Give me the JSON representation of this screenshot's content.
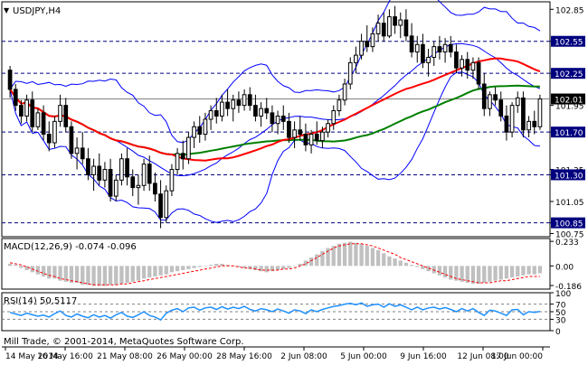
{
  "header": {
    "symbol_timeframe": "USDJPY,H4",
    "macd_label": "MACD(12,26,9) -0.074 -0.096",
    "rsi_label": "RSI(14) 50.5117",
    "copyright": "Mill Trade, © 2001-2014, MetaQuotes Software Corp.",
    "arrow_glyph": "▼"
  },
  "chart_data": [
    {
      "type": "candlestick",
      "title": "USDJPY,H4",
      "ylim": [
        100.72,
        102.92
      ],
      "y_ticks": [
        "102.85",
        "102.55",
        "102.25",
        "101.95",
        "101.70",
        "101.35",
        "101.30",
        "101.05",
        "100.85",
        "100.75"
      ],
      "grid": false,
      "x_ticks": [
        "14 May 2014",
        "16 May 16:00",
        "21 May 08:00",
        "26 May 00:00",
        "28 May 16:00",
        "2 Jun 08:00",
        "5 Jun 00:00",
        "9 Jun 16:00",
        "12 Jun 08:00",
        "17 Jun 00:00"
      ],
      "horizontal_levels": [
        {
          "value": "102.55",
          "label": "102.55"
        },
        {
          "value": "102.25",
          "label": "102.25"
        },
        {
          "value": "101.70",
          "label": "101.70"
        },
        {
          "value": "101.30",
          "label": "101.30"
        },
        {
          "value": "100.85",
          "label": "100.85"
        }
      ],
      "current_price": {
        "value": 102.01,
        "label": "102.01"
      },
      "candles": [
        [
          102.28,
          102.32,
          102.02,
          102.1
        ],
        [
          102.1,
          102.15,
          101.9,
          101.95
        ],
        [
          101.95,
          102.0,
          101.78,
          101.85
        ],
        [
          101.85,
          102.05,
          101.8,
          102.0
        ],
        [
          102.0,
          102.08,
          101.7,
          101.75
        ],
        [
          101.75,
          101.92,
          101.72,
          101.88
        ],
        [
          101.88,
          101.95,
          101.62,
          101.68
        ],
        [
          101.68,
          101.8,
          101.52,
          101.6
        ],
        [
          101.6,
          101.85,
          101.55,
          101.8
        ],
        [
          101.8,
          102.05,
          101.75,
          101.95
        ],
        [
          101.95,
          102.02,
          101.7,
          101.75
        ],
        [
          101.75,
          101.8,
          101.45,
          101.5
        ],
        [
          101.5,
          101.65,
          101.35,
          101.55
        ],
        [
          101.55,
          101.7,
          101.4,
          101.45
        ],
        [
          101.45,
          101.55,
          101.25,
          101.3
        ],
        [
          101.3,
          101.45,
          101.15,
          101.38
        ],
        [
          101.38,
          101.5,
          101.2,
          101.25
        ],
        [
          101.25,
          101.42,
          101.18,
          101.35
        ],
        [
          101.35,
          101.45,
          101.05,
          101.1
        ],
        [
          101.1,
          101.3,
          101.05,
          101.25
        ],
        [
          101.25,
          101.5,
          101.2,
          101.45
        ],
        [
          101.45,
          101.55,
          101.2,
          101.28
        ],
        [
          101.28,
          101.35,
          101.1,
          101.18
        ],
        [
          101.18,
          101.3,
          101.02,
          101.2
        ],
        [
          101.2,
          101.45,
          101.15,
          101.4
        ],
        [
          101.4,
          101.48,
          101.15,
          101.22
        ],
        [
          101.22,
          101.32,
          101.05,
          101.12
        ],
        [
          101.12,
          101.25,
          100.8,
          100.9
        ],
        [
          100.9,
          101.2,
          100.85,
          101.15
        ],
        [
          101.15,
          101.4,
          101.1,
          101.35
        ],
        [
          101.35,
          101.55,
          101.3,
          101.5
        ],
        [
          101.5,
          101.62,
          101.35,
          101.45
        ],
        [
          101.45,
          101.7,
          101.4,
          101.65
        ],
        [
          101.65,
          101.8,
          101.55,
          101.75
        ],
        [
          101.75,
          101.85,
          101.6,
          101.68
        ],
        [
          101.68,
          101.88,
          101.62,
          101.82
        ],
        [
          101.82,
          101.95,
          101.72,
          101.9
        ],
        [
          101.9,
          102.02,
          101.78,
          101.85
        ],
        [
          101.85,
          102.05,
          101.8,
          101.98
        ],
        [
          101.98,
          102.1,
          101.85,
          101.92
        ],
        [
          101.92,
          102.05,
          101.8,
          102.0
        ],
        [
          102.0,
          102.08,
          101.88,
          101.95
        ],
        [
          101.95,
          102.1,
          101.9,
          102.05
        ],
        [
          102.05,
          102.12,
          101.9,
          101.95
        ],
        [
          101.95,
          102.05,
          101.8,
          101.85
        ],
        [
          101.85,
          101.98,
          101.75,
          101.92
        ],
        [
          101.92,
          102.02,
          101.82,
          101.88
        ],
        [
          101.88,
          101.95,
          101.7,
          101.78
        ],
        [
          101.78,
          101.9,
          101.68,
          101.85
        ],
        [
          101.85,
          101.95,
          101.72,
          101.8
        ],
        [
          101.8,
          101.88,
          101.6,
          101.65
        ],
        [
          101.65,
          101.8,
          101.55,
          101.72
        ],
        [
          101.72,
          101.85,
          101.62,
          101.68
        ],
        [
          101.68,
          101.78,
          101.52,
          101.58
        ],
        [
          101.58,
          101.72,
          101.5,
          101.68
        ],
        [
          101.68,
          101.8,
          101.58,
          101.62
        ],
        [
          101.62,
          101.75,
          101.55,
          101.7
        ],
        [
          101.7,
          101.82,
          101.65,
          101.78
        ],
        [
          101.78,
          101.95,
          101.72,
          101.9
        ],
        [
          101.9,
          102.05,
          101.85,
          102.0
        ],
        [
          102.0,
          102.2,
          101.95,
          102.15
        ],
        [
          102.15,
          102.4,
          102.1,
          102.35
        ],
        [
          102.35,
          102.5,
          102.25,
          102.42
        ],
        [
          102.42,
          102.62,
          102.38,
          102.55
        ],
        [
          102.55,
          102.7,
          102.45,
          102.5
        ],
        [
          102.5,
          102.68,
          102.45,
          102.62
        ],
        [
          102.62,
          102.8,
          102.55,
          102.72
        ],
        [
          102.72,
          102.82,
          102.55,
          102.6
        ],
        [
          102.6,
          102.85,
          102.58,
          102.78
        ],
        [
          102.78,
          102.88,
          102.62,
          102.7
        ],
        [
          102.7,
          102.82,
          102.58,
          102.75
        ],
        [
          102.75,
          102.85,
          102.55,
          102.6
        ],
        [
          102.6,
          102.72,
          102.4,
          102.45
        ],
        [
          102.45,
          102.6,
          102.35,
          102.52
        ],
        [
          102.52,
          102.62,
          102.3,
          102.35
        ],
        [
          102.35,
          102.48,
          102.22,
          102.4
        ],
        [
          102.4,
          102.55,
          102.32,
          102.5
        ],
        [
          102.5,
          102.6,
          102.38,
          102.45
        ],
        [
          102.45,
          102.58,
          102.35,
          102.52
        ],
        [
          102.52,
          102.6,
          102.4,
          102.45
        ],
        [
          102.45,
          102.52,
          102.25,
          102.3
        ],
        [
          102.3,
          102.42,
          102.22,
          102.38
        ],
        [
          102.38,
          102.45,
          102.2,
          102.28
        ],
        [
          102.28,
          102.4,
          102.2,
          102.35
        ],
        [
          102.35,
          102.4,
          102.1,
          102.15
        ],
        [
          102.15,
          102.25,
          101.85,
          101.92
        ],
        [
          101.92,
          102.08,
          101.85,
          102.05
        ],
        [
          102.05,
          102.12,
          101.95,
          102.0
        ],
        [
          102.0,
          102.08,
          101.8,
          101.85
        ],
        [
          101.85,
          101.95,
          101.62,
          101.7
        ],
        [
          101.7,
          101.98,
          101.65,
          101.95
        ],
        [
          101.95,
          102.08,
          101.88,
          102.02
        ],
        [
          102.02,
          102.08,
          101.65,
          101.72
        ],
        [
          101.72,
          101.85,
          101.65,
          101.8
        ],
        [
          101.8,
          101.9,
          101.68,
          101.75
        ],
        [
          101.75,
          102.05,
          101.72,
          102.01
        ]
      ],
      "indicators": [
        {
          "type": "sma-fast",
          "color": "#ff0000"
        },
        {
          "type": "sma-slow",
          "color": "#007f00"
        },
        {
          "type": "bollinger-bands",
          "color": "#0000ff"
        }
      ],
      "candle_colors": {
        "body": "#000000",
        "bull_fill": "#ffffff",
        "bear_fill": "#000000"
      }
    },
    {
      "type": "bar",
      "title": "MACD(12,26,9) -0.074 -0.096",
      "ylim": [
        -0.22,
        0.26
      ],
      "y_ticks": [
        "0.233",
        "0.00",
        "-0.186"
      ],
      "histogram": [
        0.02,
        0.01,
        -0.02,
        -0.04,
        -0.06,
        -0.08,
        -0.1,
        -0.12,
        -0.12,
        -0.14,
        -0.15,
        -0.16,
        -0.16,
        -0.18,
        -0.18,
        -0.19,
        -0.19,
        -0.19,
        -0.18,
        -0.18,
        -0.17,
        -0.16,
        -0.15,
        -0.14,
        -0.12,
        -0.11,
        -0.1,
        -0.09,
        -0.08,
        -0.06,
        -0.05,
        -0.04,
        -0.03,
        -0.02,
        -0.01,
        0.0,
        0.01,
        0.02,
        0.02,
        0.01,
        0.0,
        -0.01,
        -0.02,
        -0.03,
        -0.04,
        -0.05,
        -0.06,
        -0.05,
        -0.04,
        -0.03,
        -0.02,
        0.0,
        0.02,
        0.05,
        0.08,
        0.11,
        0.14,
        0.17,
        0.19,
        0.21,
        0.22,
        0.23,
        0.22,
        0.21,
        0.19,
        0.17,
        0.15,
        0.12,
        0.09,
        0.07,
        0.05,
        0.03,
        0.01,
        -0.01,
        -0.03,
        -0.05,
        -0.07,
        -0.09,
        -0.11,
        -0.13,
        -0.14,
        -0.15,
        -0.16,
        -0.17,
        -0.17,
        -0.16,
        -0.15,
        -0.14,
        -0.13,
        -0.12,
        -0.11,
        -0.1,
        -0.09,
        -0.08,
        -0.08,
        -0.07
      ],
      "signal": [
        0.03,
        0.02,
        0.01,
        -0.01,
        -0.03,
        -0.05,
        -0.07,
        -0.09,
        -0.1,
        -0.12,
        -0.13,
        -0.14,
        -0.15,
        -0.16,
        -0.17,
        -0.18,
        -0.18,
        -0.18,
        -0.18,
        -0.18,
        -0.17,
        -0.17,
        -0.16,
        -0.15,
        -0.14,
        -0.13,
        -0.12,
        -0.11,
        -0.1,
        -0.09,
        -0.08,
        -0.07,
        -0.06,
        -0.05,
        -0.04,
        -0.03,
        -0.02,
        -0.01,
        0.0,
        0.0,
        0.0,
        -0.01,
        -0.02,
        -0.02,
        -0.03,
        -0.04,
        -0.04,
        -0.04,
        -0.04,
        -0.03,
        -0.03,
        -0.02,
        0.0,
        0.02,
        0.05,
        0.08,
        0.11,
        0.14,
        0.17,
        0.19,
        0.2,
        0.21,
        0.21,
        0.21,
        0.2,
        0.19,
        0.17,
        0.15,
        0.13,
        0.11,
        0.08,
        0.06,
        0.04,
        0.02,
        0.0,
        -0.02,
        -0.04,
        -0.06,
        -0.08,
        -0.1,
        -0.12,
        -0.13,
        -0.14,
        -0.15,
        -0.16,
        -0.16,
        -0.16,
        -0.15,
        -0.14,
        -0.14,
        -0.13,
        -0.12,
        -0.11,
        -0.1,
        -0.1,
        -0.1
      ],
      "colors": {
        "histogram": "#c0c0c0",
        "signal": "#ff0000"
      }
    },
    {
      "type": "line",
      "title": "RSI(14) 50.5117",
      "ylim": [
        0,
        100
      ],
      "y_ticks": [
        "100",
        "70",
        "50",
        "30",
        "0"
      ],
      "levels": [
        70,
        50,
        30
      ],
      "values": [
        48,
        44,
        40,
        46,
        42,
        38,
        41,
        36,
        45,
        52,
        40,
        36,
        44,
        38,
        34,
        42,
        36,
        40,
        33,
        42,
        48,
        38,
        35,
        42,
        50,
        40,
        36,
        28,
        46,
        54,
        58,
        50,
        60,
        62,
        54,
        60,
        62,
        56,
        63,
        57,
        62,
        58,
        64,
        56,
        52,
        58,
        55,
        50,
        57,
        52,
        46,
        55,
        52,
        45,
        55,
        50,
        56,
        60,
        64,
        66,
        70,
        72,
        68,
        73,
        64,
        68,
        70,
        62,
        71,
        64,
        68,
        62,
        55,
        62,
        55,
        60,
        62,
        57,
        61,
        56,
        50,
        58,
        52,
        58,
        48,
        40,
        54,
        52,
        46,
        40,
        55,
        56,
        42,
        50,
        48,
        50.51
      ],
      "color": "#1e90ff"
    }
  ]
}
